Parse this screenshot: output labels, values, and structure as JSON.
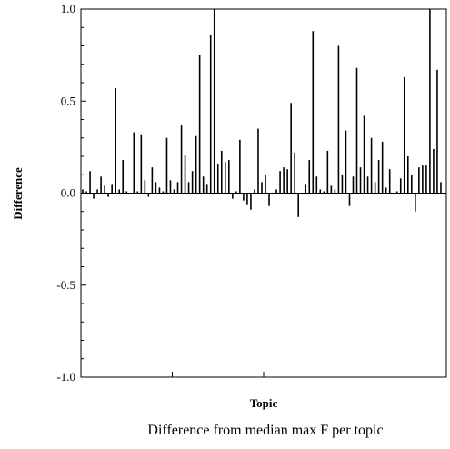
{
  "chart_data": {
    "type": "bar",
    "title": "",
    "caption": "Difference from median max F per topic",
    "xlabel": "Topic",
    "ylabel": "Difference",
    "ylim": [
      -1.0,
      1.0
    ],
    "yticks": [
      -1.0,
      -0.5,
      0.0,
      0.5,
      1.0
    ],
    "ytick_labels": [
      "-1.0",
      "-0.5",
      "0.0",
      "0.5",
      "1.0"
    ],
    "xticks": [
      0,
      25,
      50,
      75,
      100
    ],
    "grid": false,
    "series": [
      {
        "x": [
          1,
          2,
          3,
          4,
          5,
          6,
          7,
          8,
          9,
          10,
          11,
          12,
          13,
          14,
          15,
          16,
          17,
          18,
          19,
          20,
          21,
          22,
          23,
          24,
          25,
          26,
          27,
          28,
          29,
          30,
          31,
          32,
          33,
          34,
          35,
          36,
          37,
          38,
          39,
          40,
          41,
          42,
          43,
          44,
          45,
          46,
          47,
          48,
          49,
          50,
          51,
          52,
          53,
          54,
          55,
          56,
          57,
          58,
          59,
          60,
          61,
          62,
          63,
          64,
          65,
          66,
          67,
          68,
          69,
          70,
          71,
          72,
          73,
          74,
          75,
          76,
          77,
          78,
          79,
          80,
          81,
          82,
          83,
          84,
          85,
          86,
          87,
          88,
          89,
          90,
          91,
          92,
          93,
          94,
          95,
          96,
          97,
          98,
          99,
          100
        ],
        "values": [
          0.02,
          0.01,
          0.12,
          -0.03,
          0.02,
          0.09,
          0.04,
          -0.02,
          0.05,
          0.57,
          0.02,
          0.18,
          0.01,
          0.0,
          0.33,
          0.01,
          0.32,
          0.07,
          -0.02,
          0.14,
          0.06,
          0.03,
          0.01,
          0.3,
          0.07,
          0.02,
          0.06,
          0.37,
          0.21,
          0.06,
          0.12,
          0.31,
          0.75,
          0.09,
          0.05,
          0.86,
          1.0,
          0.16,
          0.23,
          0.17,
          0.18,
          -0.03,
          0.01,
          0.29,
          -0.04,
          -0.06,
          -0.09,
          0.02,
          0.35,
          0.06,
          0.1,
          -0.07,
          0.0,
          0.02,
          0.12,
          0.14,
          0.13,
          0.49,
          0.22,
          -0.13,
          0.0,
          0.05,
          0.18,
          0.88,
          0.09,
          0.02,
          0.01,
          0.23,
          0.04,
          0.02,
          0.8,
          0.1,
          0.34,
          -0.07,
          0.09,
          0.68,
          0.14,
          0.42,
          0.09,
          0.3,
          0.06,
          0.18,
          0.28,
          0.03,
          0.13,
          0.0,
          0.01,
          0.08,
          0.63,
          0.2,
          0.1,
          -0.1,
          0.14,
          0.15,
          0.15,
          1.0,
          0.24,
          0.67,
          0.06,
          0.0
        ]
      }
    ]
  }
}
